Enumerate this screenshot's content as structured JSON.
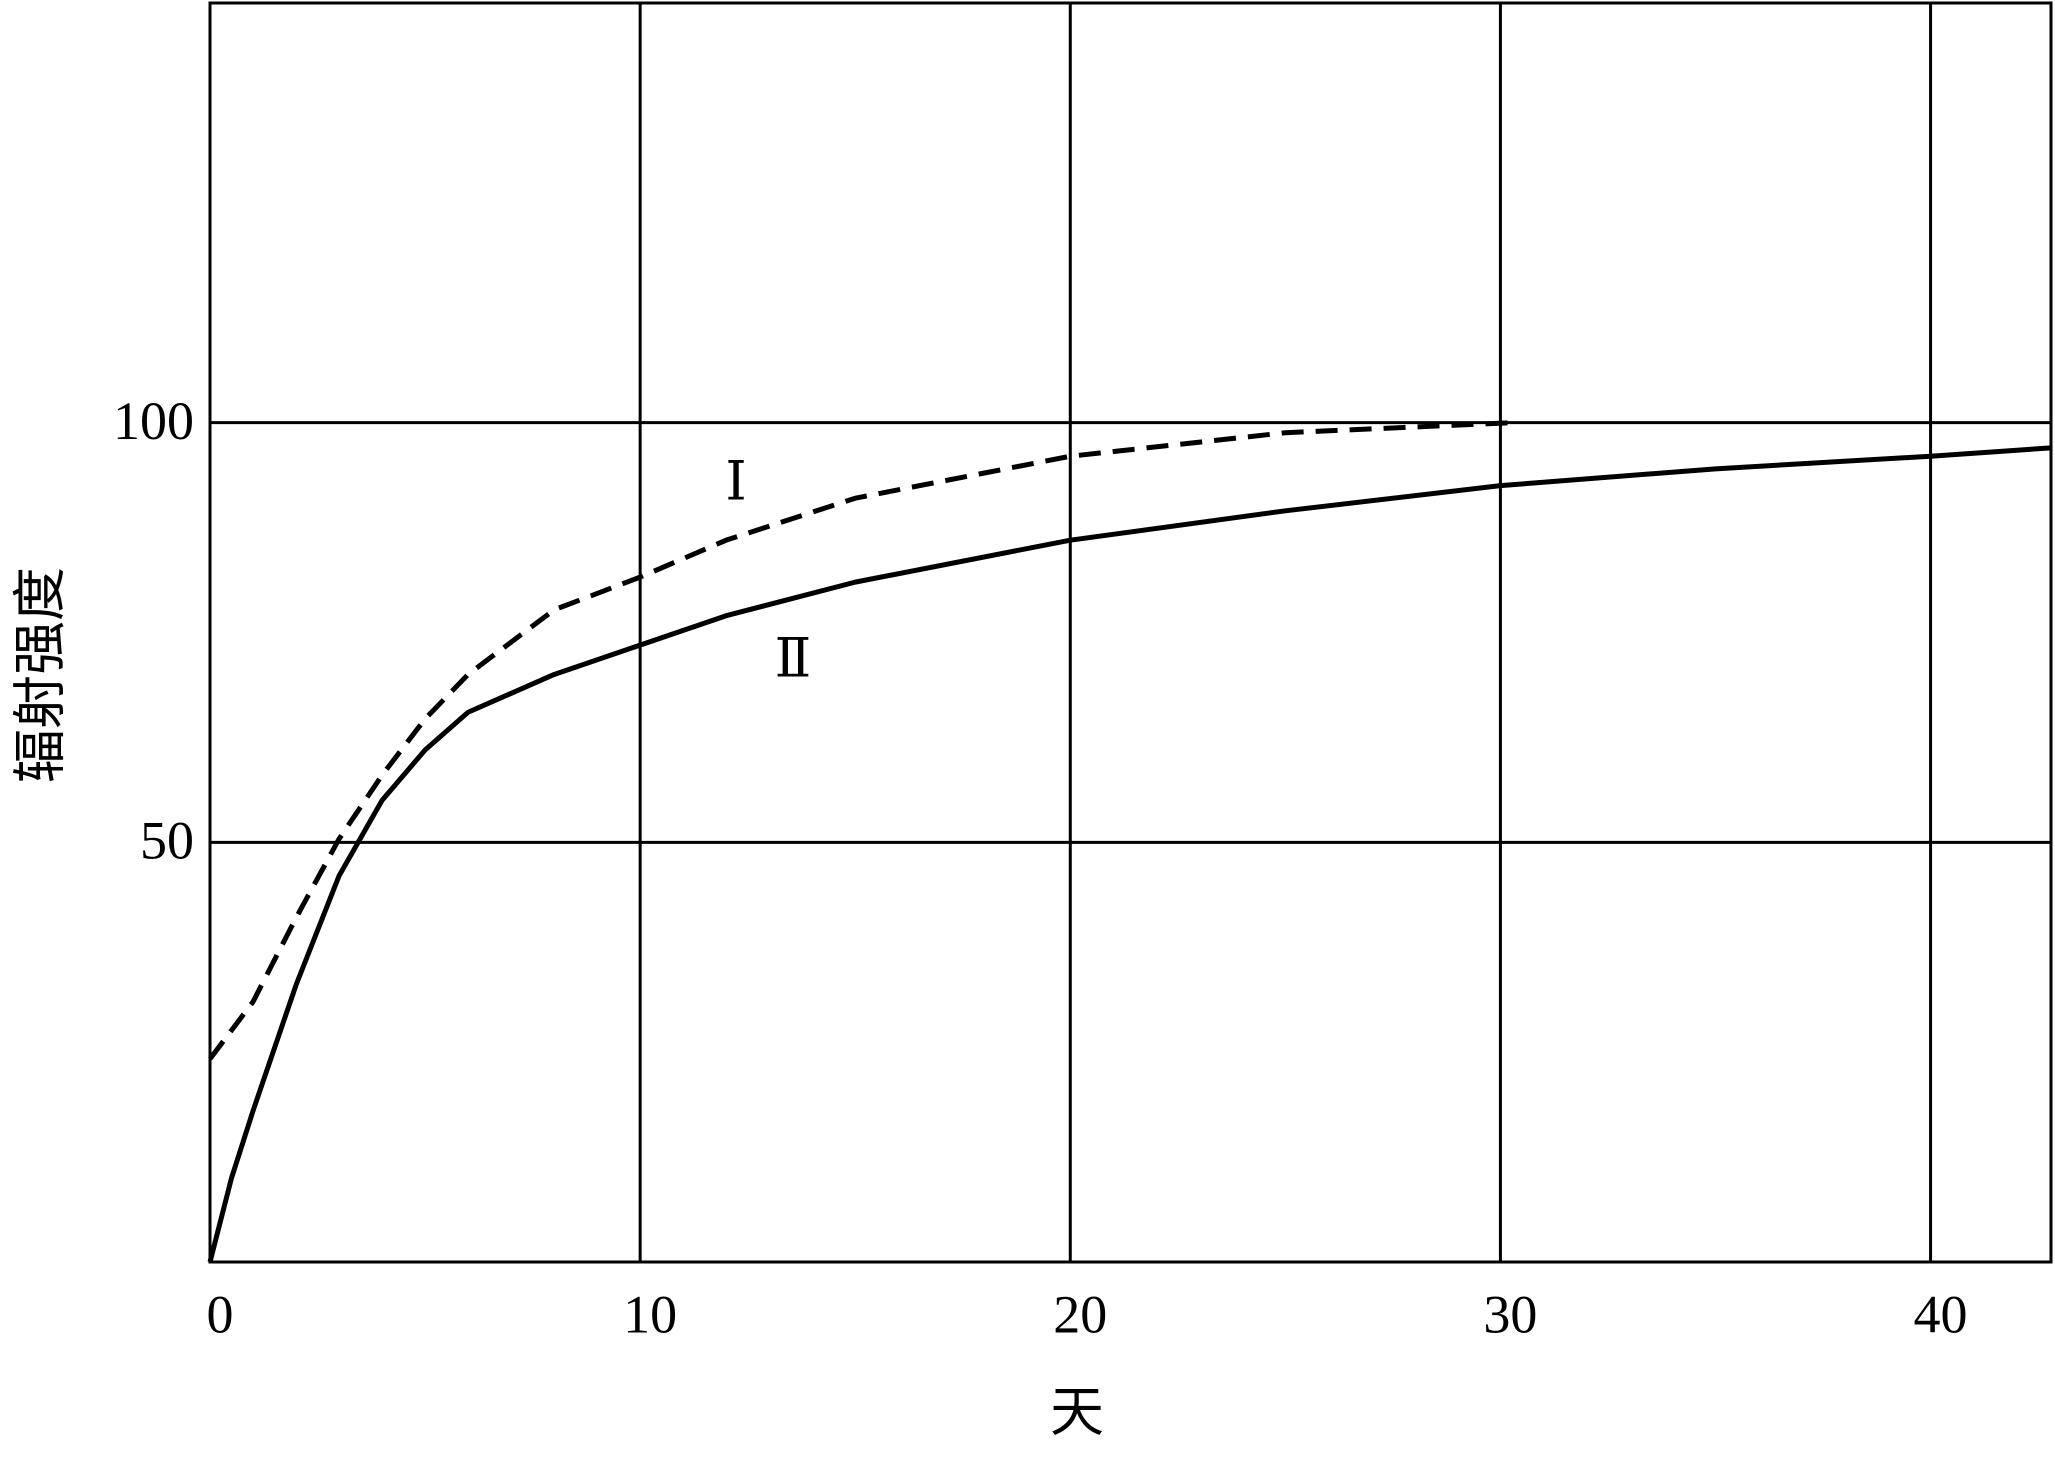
{
  "chart_data": {
    "type": "line",
    "x_label": "天",
    "y_label": "辐射强度",
    "xlim": [
      0,
      42.8
    ],
    "ylim": [
      0,
      150
    ],
    "xticks": [
      0,
      10,
      20,
      30,
      40
    ],
    "yticks": [
      50,
      100
    ],
    "grid": true,
    "series": [
      {
        "name": "Ⅰ",
        "color": "#000000",
        "dashed": true,
        "x": [
          0,
          1,
          2,
          3,
          4,
          5,
          6,
          8,
          10,
          12,
          15,
          20,
          25,
          30.3
        ],
        "values": [
          24.2,
          31,
          41,
          50.4,
          58,
          64.7,
          70,
          77.7,
          81.6,
          86,
          91,
          96,
          98.8,
          100
        ]
      },
      {
        "name": "Ⅱ",
        "color": "#000000",
        "dashed": false,
        "x": [
          0,
          0.5,
          1,
          2,
          3,
          4,
          5,
          6,
          8,
          10,
          12,
          15,
          20,
          25,
          30,
          35,
          40,
          42.8
        ],
        "values": [
          0,
          10,
          18,
          33,
          46,
          55,
          61,
          65.5,
          70,
          73.5,
          77,
          81,
          86,
          89.5,
          92.5,
          94.5,
          96,
          97
        ]
      }
    ]
  }
}
